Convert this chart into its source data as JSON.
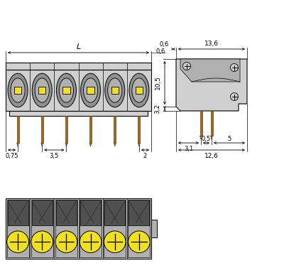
{
  "bg_color": "#ffffff",
  "gray_color": "#c0c0c0",
  "gray_dark": "#909090",
  "gray_med": "#b0b0b0",
  "gray_light": "#d0d0d0",
  "yellow_color": "#f0e020",
  "brown_color": "#a06820",
  "black": "#000000",
  "n_poles": 6,
  "figsize": [
    4.0,
    3.84
  ],
  "dpi": 100,
  "annotations": {
    "L": "L",
    "dim_06": "0,6",
    "dim_136": "13,6",
    "dim_105": "10,5",
    "dim_32": "3,2",
    "dim_31": "3,1",
    "dim_05": "0,5",
    "dim_5": "5",
    "dim_126": "12,6",
    "dim_075": "0,75",
    "dim_35": "3,5",
    "dim_2": "2"
  }
}
